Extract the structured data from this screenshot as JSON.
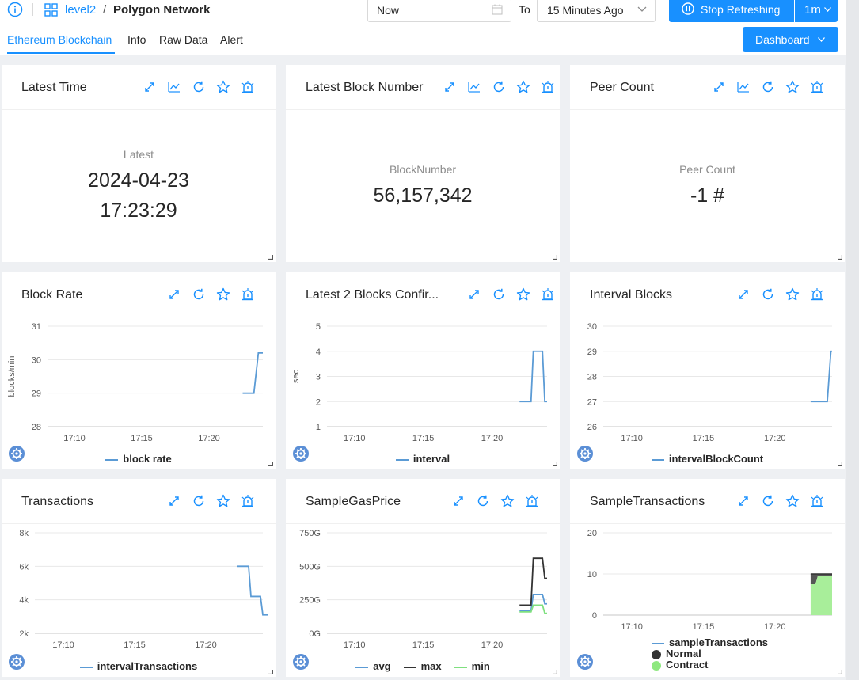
{
  "header": {
    "breadcrumb_level": "level2",
    "breadcrumb_separator": "/",
    "breadcrumb_network": "Polygon Network",
    "from_value": "Now",
    "to_label": "To",
    "range_value": "15 Minutes Ago",
    "stop_label": "Stop Refreshing",
    "interval_label": "1m",
    "dashboard_label": "Dashboard",
    "accent": "#1890ff"
  },
  "tabs": [
    {
      "label": "Ethereum Blockchain",
      "active": true
    },
    {
      "label": "Info",
      "active": false
    },
    {
      "label": "Raw Data",
      "active": false
    },
    {
      "label": "Alert",
      "active": false
    }
  ],
  "panels": {
    "latest_time": {
      "title": "Latest Time",
      "label": "Latest",
      "value_date": "2024-04-23",
      "value_time": "17:23:29"
    },
    "latest_block": {
      "title": "Latest Block Number",
      "label": "BlockNumber",
      "value": "56,157,342"
    },
    "peer_count": {
      "title": "Peer Count",
      "label": "Peer Count",
      "value": "-1 #"
    },
    "block_rate": {
      "title": "Block Rate",
      "legend": [
        "block rate"
      ]
    },
    "confirm": {
      "title": "Latest 2 Blocks Confir...",
      "legend": [
        "interval"
      ]
    },
    "interval_blocks": {
      "title": "Interval Blocks",
      "legend": [
        "intervalBlockCount"
      ]
    },
    "transactions": {
      "title": "Transactions",
      "legend": [
        "intervalTransactions"
      ]
    },
    "gas_price": {
      "title": "SampleGasPrice",
      "legend": [
        "avg",
        "max",
        "min"
      ]
    },
    "sample_tx": {
      "title": "SampleTransactions",
      "legend": [
        "sampleTransactions",
        "Normal",
        "Contract"
      ]
    }
  },
  "chart_data": [
    {
      "id": "block_rate",
      "type": "line",
      "ylabel": "blocks/min",
      "x_ticks": [
        "17:10",
        "17:15",
        "17:20"
      ],
      "y_ticks": [
        28,
        29,
        30,
        31
      ],
      "ylim": [
        28,
        31
      ],
      "xlim": [
        "17:08",
        "17:24"
      ],
      "series": [
        {
          "name": "block rate",
          "color": "#5b9bd5",
          "x": [
            "17:22:30",
            "17:23:20",
            "17:23:40",
            "17:24:00"
          ],
          "y": [
            29.0,
            29.0,
            30.2,
            30.2
          ]
        }
      ]
    },
    {
      "id": "confirm",
      "type": "line",
      "ylabel": "sec",
      "x_ticks": [
        "17:10",
        "17:15",
        "17:20"
      ],
      "y_ticks": [
        1,
        2,
        3,
        4,
        5
      ],
      "ylim": [
        1,
        5
      ],
      "xlim": [
        "17:08",
        "17:24"
      ],
      "series": [
        {
          "name": "interval",
          "color": "#5b9bd5",
          "x": [
            "17:22:00",
            "17:22:50",
            "17:23:00",
            "17:23:40",
            "17:23:50",
            "17:24:00"
          ],
          "y": [
            2,
            2,
            4,
            4,
            2,
            2
          ]
        }
      ]
    },
    {
      "id": "interval_blocks",
      "type": "line",
      "ylabel": "",
      "x_ticks": [
        "17:10",
        "17:15",
        "17:20"
      ],
      "y_ticks": [
        26,
        27,
        28,
        29,
        30
      ],
      "ylim": [
        26,
        30
      ],
      "xlim": [
        "17:08",
        "17:24"
      ],
      "series": [
        {
          "name": "intervalBlockCount",
          "color": "#5b9bd5",
          "x": [
            "17:22:30",
            "17:23:40",
            "17:23:55",
            "17:24:00"
          ],
          "y": [
            27,
            27,
            29,
            29
          ]
        }
      ]
    },
    {
      "id": "transactions",
      "type": "line",
      "ylabel": "",
      "x_ticks": [
        "17:10",
        "17:15",
        "17:20"
      ],
      "y_ticks": [
        "2k",
        "4k",
        "6k",
        "8k"
      ],
      "ylim": [
        2000,
        8000
      ],
      "xlim": [
        "17:08",
        "17:24"
      ],
      "series": [
        {
          "name": "intervalTransactions",
          "color": "#5b9bd5",
          "x": [
            "17:22:10",
            "17:23:00",
            "17:23:10",
            "17:23:50",
            "17:24:00",
            "17:24:20"
          ],
          "y": [
            6000,
            6000,
            4200,
            4200,
            3100,
            3100
          ]
        }
      ]
    },
    {
      "id": "gas_price",
      "type": "line",
      "ylabel": "",
      "x_ticks": [
        "17:10",
        "17:15",
        "17:20"
      ],
      "y_ticks": [
        "0G",
        "250G",
        "500G",
        "750G"
      ],
      "ylim": [
        0,
        750
      ],
      "xlim": [
        "17:08",
        "17:24"
      ],
      "series": [
        {
          "name": "avg",
          "color": "#5b9bd5",
          "x": [
            "17:22:00",
            "17:22:50",
            "17:23:00",
            "17:23:40",
            "17:23:50",
            "17:24:00"
          ],
          "y": [
            170,
            170,
            290,
            290,
            220,
            220
          ]
        },
        {
          "name": "max",
          "color": "#333333",
          "x": [
            "17:22:00",
            "17:22:50",
            "17:23:00",
            "17:23:40",
            "17:23:50",
            "17:24:00"
          ],
          "y": [
            210,
            210,
            560,
            560,
            410,
            410
          ]
        },
        {
          "name": "min",
          "color": "#7fe07f",
          "x": [
            "17:22:00",
            "17:22:50",
            "17:23:00",
            "17:23:40",
            "17:23:50",
            "17:24:00"
          ],
          "y": [
            160,
            160,
            210,
            210,
            150,
            150
          ]
        }
      ]
    },
    {
      "id": "sample_tx",
      "type": "area",
      "ylabel": "",
      "x_ticks": [
        "17:10",
        "17:15",
        "17:20"
      ],
      "y_ticks": [
        0,
        10,
        20
      ],
      "ylim": [
        0,
        20
      ],
      "xlim": [
        "17:08",
        "17:24"
      ],
      "series": [
        {
          "name": "sampleTransactions",
          "color": "#5b9bd5",
          "x": [
            "17:22:30",
            "17:24:00"
          ],
          "y": [
            10,
            10
          ]
        },
        {
          "name": "Normal",
          "color": "#555555",
          "x": [
            "17:22:30",
            "17:22:50",
            "17:23:00",
            "17:24:00"
          ],
          "y": [
            10,
            10,
            10,
            10
          ]
        },
        {
          "name": "Contract",
          "color": "#a8ee9a",
          "x": [
            "17:22:30",
            "17:22:50",
            "17:23:00",
            "17:24:00"
          ],
          "y": [
            7.5,
            7.5,
            9.5,
            9.5
          ]
        }
      ]
    }
  ]
}
